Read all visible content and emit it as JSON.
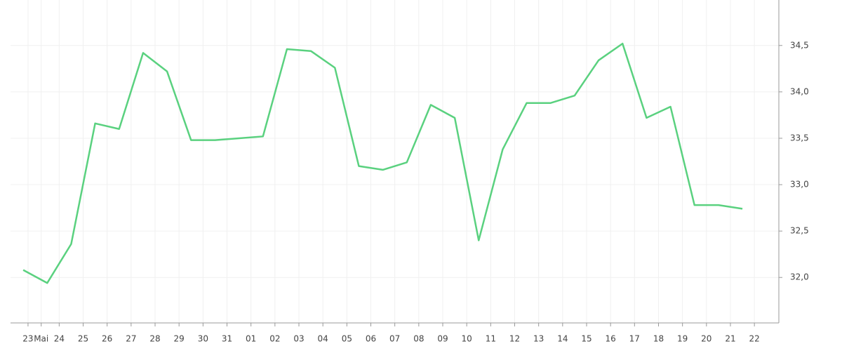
{
  "chart_data": {
    "type": "line",
    "x": [
      0,
      1,
      2,
      3,
      4,
      5,
      6,
      7,
      8,
      9,
      10,
      11,
      12,
      13,
      14,
      15,
      16,
      17,
      18,
      19,
      20,
      21,
      22,
      23,
      24,
      25,
      26,
      27,
      28,
      29,
      30
    ],
    "series": [
      {
        "name": null,
        "color": "#5ad17f",
        "values": [
          32.08,
          31.94,
          32.36,
          33.66,
          33.6,
          34.42,
          34.22,
          33.48,
          33.48,
          33.5,
          33.52,
          34.46,
          34.44,
          34.26,
          33.2,
          33.16,
          33.24,
          33.86,
          33.72,
          32.4,
          33.38,
          33.88,
          33.88,
          33.96,
          34.34,
          34.52,
          33.72,
          33.84,
          32.78,
          32.78,
          32.74
        ]
      }
    ],
    "xlim": [
      -0.53,
      31.52
    ],
    "xticks": [
      {
        "value": 0.2,
        "label": "23"
      },
      {
        "value": 0.75,
        "label": "Mai"
      },
      {
        "value": 1.5,
        "label": "24"
      },
      {
        "value": 2.5,
        "label": "25"
      },
      {
        "value": 3.5,
        "label": "26"
      },
      {
        "value": 4.5,
        "label": "27"
      },
      {
        "value": 5.5,
        "label": "28"
      },
      {
        "value": 6.5,
        "label": "29"
      },
      {
        "value": 7.5,
        "label": "30"
      },
      {
        "value": 8.5,
        "label": "31"
      },
      {
        "value": 9.5,
        "label": "01"
      },
      {
        "value": 10.5,
        "label": "02"
      },
      {
        "value": 11.5,
        "label": "03"
      },
      {
        "value": 12.5,
        "label": "04"
      },
      {
        "value": 13.5,
        "label": "05"
      },
      {
        "value": 14.5,
        "label": "06"
      },
      {
        "value": 15.5,
        "label": "07"
      },
      {
        "value": 16.5,
        "label": "08"
      },
      {
        "value": 17.5,
        "label": "09"
      },
      {
        "value": 18.5,
        "label": "10"
      },
      {
        "value": 19.5,
        "label": "11"
      },
      {
        "value": 20.5,
        "label": "12"
      },
      {
        "value": 21.5,
        "label": "13"
      },
      {
        "value": 22.5,
        "label": "14"
      },
      {
        "value": 23.5,
        "label": "15"
      },
      {
        "value": 24.5,
        "label": "16"
      },
      {
        "value": 25.5,
        "label": "17"
      },
      {
        "value": 26.5,
        "label": "18"
      },
      {
        "value": 27.5,
        "label": "19"
      },
      {
        "value": 28.5,
        "label": "20"
      },
      {
        "value": 29.5,
        "label": "21"
      },
      {
        "value": 30.5,
        "label": "22"
      }
    ],
    "ylim": [
      31.51,
      34.99
    ],
    "yticks": [
      {
        "value": 32.0,
        "label": "32,0"
      },
      {
        "value": 32.5,
        "label": "32,5"
      },
      {
        "value": 33.0,
        "label": "33,0"
      },
      {
        "value": 33.5,
        "label": "33,5"
      },
      {
        "value": 34.0,
        "label": "34,0"
      },
      {
        "value": 34.5,
        "label": "34,5"
      }
    ],
    "grid": true
  }
}
